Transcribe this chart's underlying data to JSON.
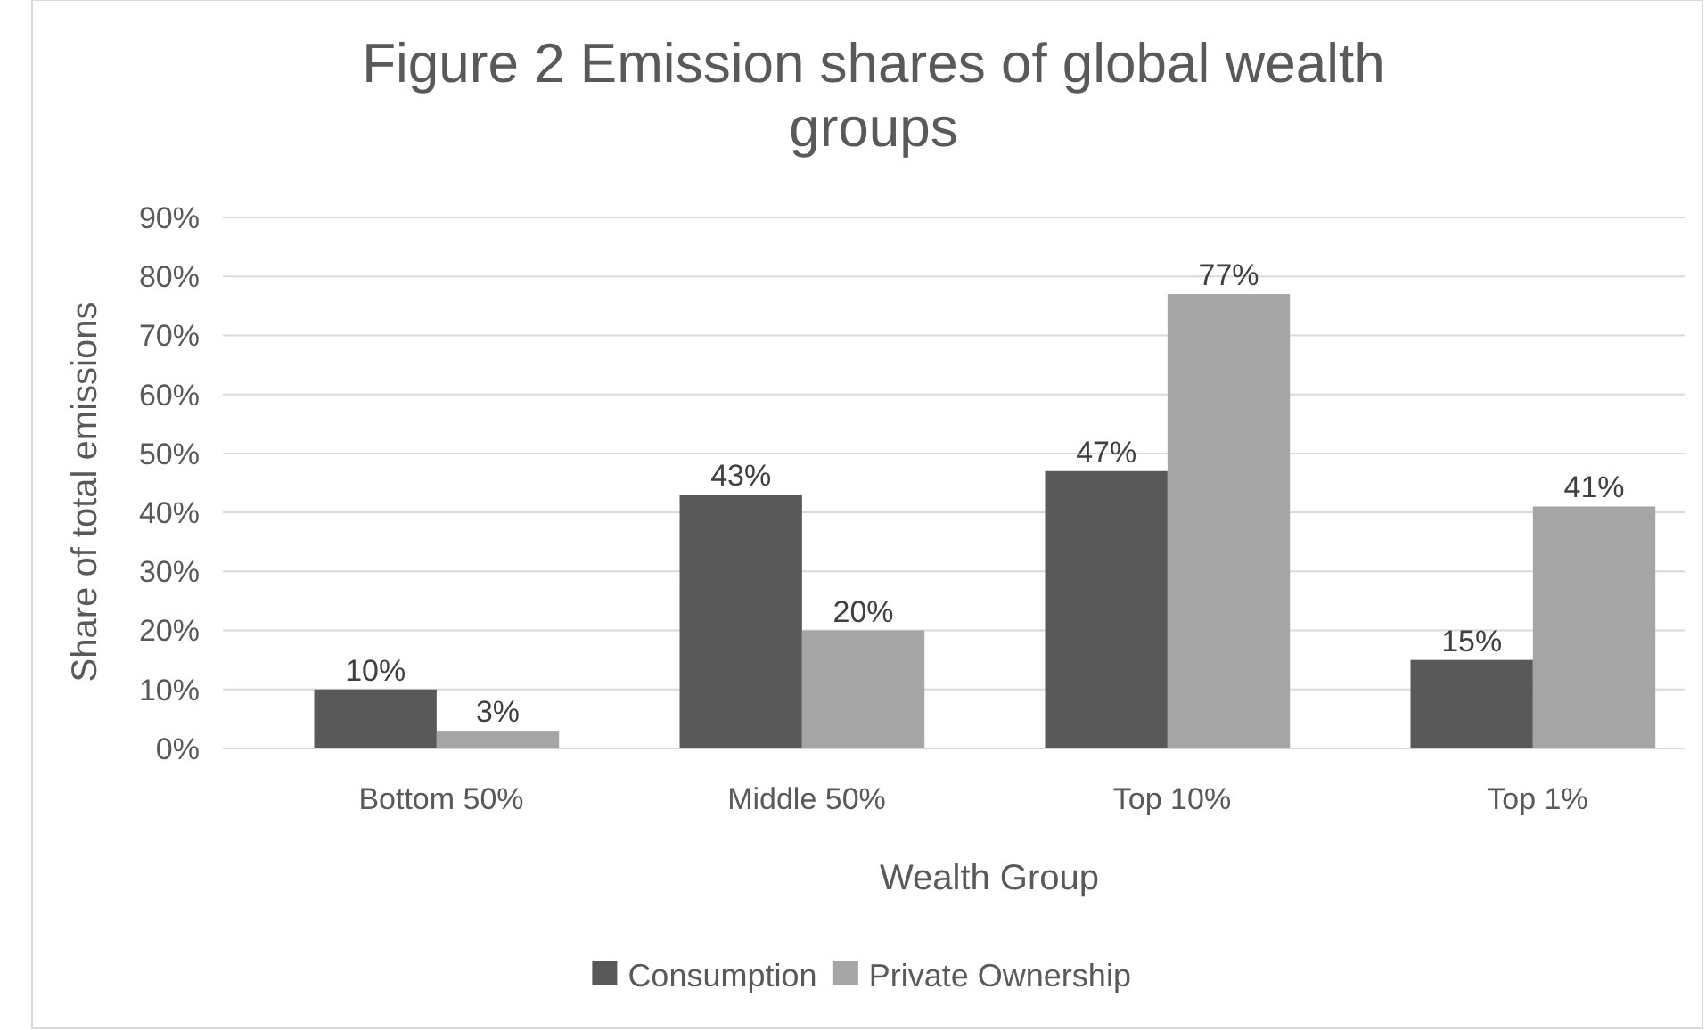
{
  "chart_data": {
    "type": "bar",
    "title": "Figure 2 Emission shares of global wealth groups",
    "xlabel": "Wealth Group",
    "ylabel": "Share of total emissions",
    "categories": [
      "Bottom 50%",
      "Middle 50%",
      "Top 10%",
      "Top 1%"
    ],
    "series": [
      {
        "name": "Consumption",
        "color": "#595959",
        "values": [
          10,
          43,
          47,
          15
        ],
        "value_labels": [
          "10%",
          "43%",
          "47%",
          "15%"
        ]
      },
      {
        "name": "Private Ownership",
        "color": "#a5a5a5",
        "values": [
          3,
          20,
          77,
          41
        ],
        "value_labels": [
          "3%",
          "20%",
          "77%",
          "41%"
        ]
      }
    ],
    "ylim": [
      0,
      90
    ],
    "yticks": [
      {
        "value": 0,
        "label": "0%"
      },
      {
        "value": 10,
        "label": "10%"
      },
      {
        "value": 20,
        "label": "20%"
      },
      {
        "value": 30,
        "label": "30%"
      },
      {
        "value": 40,
        "label": "40%"
      },
      {
        "value": 50,
        "label": "50%"
      },
      {
        "value": 60,
        "label": "60%"
      },
      {
        "value": 70,
        "label": "70%"
      },
      {
        "value": 80,
        "label": "80%"
      },
      {
        "value": 90,
        "label": "90%"
      }
    ],
    "grid": "y",
    "legend": "bottom"
  }
}
